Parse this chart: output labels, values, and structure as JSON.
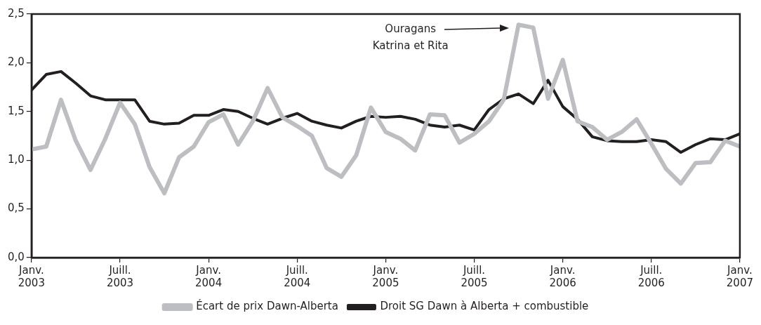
{
  "chart_data": {
    "type": "line",
    "x": [
      "2003-01",
      "2003-02",
      "2003-03",
      "2003-04",
      "2003-05",
      "2003-06",
      "2003-07",
      "2003-08",
      "2003-09",
      "2003-10",
      "2003-11",
      "2003-12",
      "2004-01",
      "2004-02",
      "2004-03",
      "2004-04",
      "2004-05",
      "2004-06",
      "2004-07",
      "2004-08",
      "2004-09",
      "2004-10",
      "2004-11",
      "2004-12",
      "2005-01",
      "2005-02",
      "2005-03",
      "2005-04",
      "2005-05",
      "2005-06",
      "2005-07",
      "2005-08",
      "2005-09",
      "2005-10",
      "2005-11",
      "2005-12",
      "2006-01",
      "2006-02",
      "2006-03",
      "2006-04",
      "2006-05",
      "2006-06",
      "2006-07",
      "2006-08",
      "2006-09",
      "2006-10",
      "2006-11",
      "2006-12",
      "2007-01"
    ],
    "series": [
      {
        "name": "Écart de prix Dawn-Alberta",
        "color": "#bdbec1",
        "values": [
          1.11,
          1.14,
          1.62,
          1.2,
          0.9,
          1.22,
          1.59,
          1.37,
          0.93,
          0.66,
          1.03,
          1.14,
          1.39,
          1.47,
          1.16,
          1.4,
          1.74,
          1.44,
          1.35,
          1.25,
          0.92,
          0.83,
          1.05,
          1.54,
          1.29,
          1.22,
          1.1,
          1.47,
          1.46,
          1.18,
          1.27,
          1.4,
          1.62,
          2.39,
          2.36,
          1.63,
          2.03,
          1.4,
          1.34,
          1.21,
          1.29,
          1.42,
          1.17,
          0.91,
          0.76,
          0.97,
          0.98,
          1.2,
          1.14
        ]
      },
      {
        "name": "Droit SG Dawn à Alberta + combustible",
        "color": "#231f20",
        "values": [
          1.72,
          1.88,
          1.91,
          1.79,
          1.66,
          1.62,
          1.62,
          1.62,
          1.4,
          1.37,
          1.38,
          1.46,
          1.46,
          1.52,
          1.5,
          1.43,
          1.37,
          1.43,
          1.48,
          1.4,
          1.36,
          1.33,
          1.4,
          1.45,
          1.44,
          1.45,
          1.42,
          1.36,
          1.34,
          1.36,
          1.31,
          1.52,
          1.63,
          1.68,
          1.58,
          1.82,
          1.55,
          1.42,
          1.24,
          1.2,
          1.19,
          1.19,
          1.21,
          1.19,
          1.08,
          1.16,
          1.22,
          1.21,
          1.27
        ]
      }
    ],
    "xlim": [
      "2003-01",
      "2007-01"
    ],
    "xticks": [
      {
        "value": "2003-01",
        "label": "Janv. 2003"
      },
      {
        "value": "2003-07",
        "label": "Juill. 2003"
      },
      {
        "value": "2004-01",
        "label": "Janv. 2004"
      },
      {
        "value": "2004-07",
        "label": "Juill. 2004"
      },
      {
        "value": "2005-01",
        "label": "Janv. 2005"
      },
      {
        "value": "2005-07",
        "label": "Juill. 2005"
      },
      {
        "value": "2006-01",
        "label": "Janv. 2006"
      },
      {
        "value": "2006-07",
        "label": "Juill. 2006"
      },
      {
        "value": "2007-01",
        "label": "Janv. 2007"
      }
    ],
    "ylim": [
      0,
      2.5
    ],
    "yticks": [
      {
        "value": 0,
        "label": "0,0"
      },
      {
        "value": 0.5,
        "label": "0,5"
      },
      {
        "value": 1,
        "label": "1,0"
      },
      {
        "value": 1.5,
        "label": "1,5"
      },
      {
        "value": 2,
        "label": "2,0"
      },
      {
        "value": 2.5,
        "label": "2,5"
      }
    ],
    "annotations": [
      "Ouragans Katrina et Rita"
    ],
    "grid": false,
    "legend": "bottom",
    "marker": "none",
    "line_style": "solid"
  }
}
